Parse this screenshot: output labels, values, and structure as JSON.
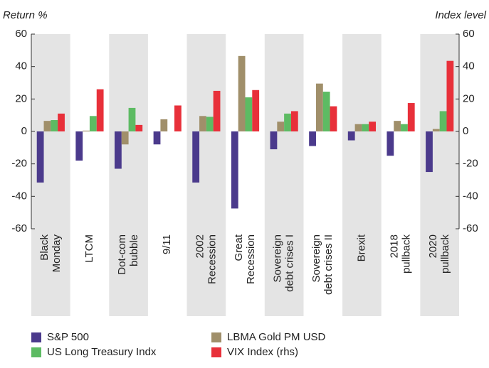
{
  "chart_data": {
    "type": "bar",
    "y_label": "Return %",
    "y2_label": "Index level",
    "categories": [
      [
        "Black",
        "Monday"
      ],
      [
        "LTCM"
      ],
      [
        "Dot-com",
        "bubble"
      ],
      [
        "9/11"
      ],
      [
        "2002",
        "Recession"
      ],
      [
        "Great",
        "Recession"
      ],
      [
        "Sovereign",
        "debt crises I"
      ],
      [
        "Sovereign",
        "debt crises II"
      ],
      [
        "Brexit"
      ],
      [
        "2018",
        "pullback"
      ],
      [
        "2020",
        "pullback"
      ]
    ],
    "series": [
      {
        "name": "S&P 500",
        "color": "#4b3a8c",
        "values": [
          -31.5,
          -18,
          -23,
          -8,
          -31.5,
          -47.5,
          -11,
          -9,
          -5.5,
          -15,
          -25
        ]
      },
      {
        "name": "LBMA Gold PM USD",
        "color": "#a08f6a",
        "values": [
          6.5,
          0.5,
          -8,
          7.5,
          9.5,
          46.5,
          6,
          29.5,
          4.5,
          6.5,
          1.5
        ]
      },
      {
        "name": "US Long Treasury Indx",
        "color": "#5dbb63",
        "values": [
          7,
          9.5,
          14.5,
          null,
          9,
          21,
          11,
          24.5,
          4.5,
          4.5,
          12.5
        ]
      },
      {
        "name": "VIX Index (rhs)",
        "color": "#e8303a",
        "axis": "y2",
        "values": [
          11,
          26,
          4,
          16,
          25,
          25.5,
          12.5,
          15.5,
          6,
          17.5,
          43.5
        ]
      }
    ],
    "ylim": [
      -60,
      60
    ],
    "yticks": [
      -60,
      -40,
      -20,
      0,
      20,
      40,
      60
    ],
    "y2lim": [
      -60,
      60
    ],
    "y2ticks": [
      -60,
      -40,
      -20,
      0,
      20,
      40,
      60
    ]
  }
}
